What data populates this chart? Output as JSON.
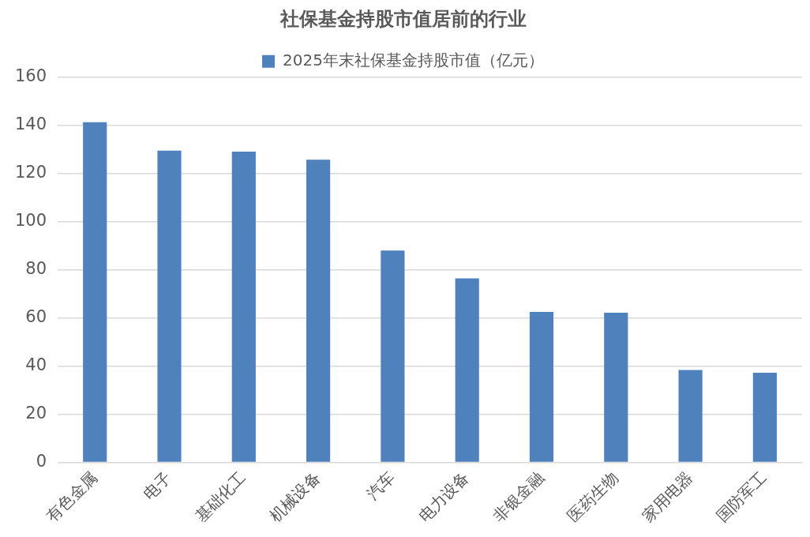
{
  "chart_data": {
    "type": "bar",
    "title": "社保基金持股市值居前的行业",
    "categories": [
      "有色金属",
      "电子",
      "基础化工",
      "机械设备",
      "汽车",
      "电力设备",
      "非银金融",
      "医药生物",
      "家用电器",
      "国防军工"
    ],
    "series": [
      {
        "name": "2025年末社保基金持股市值（亿元）",
        "color": "#4f81bd",
        "values": [
          141.3,
          129.5,
          129.1,
          125.7,
          88,
          76.4,
          62.5,
          62.2,
          38.4,
          37.2
        ]
      }
    ],
    "ylim": [
      0,
      160
    ],
    "yticks": [
      0,
      20,
      40,
      60,
      80,
      100,
      120,
      140,
      160
    ],
    "grid": "y",
    "legend": "top"
  }
}
